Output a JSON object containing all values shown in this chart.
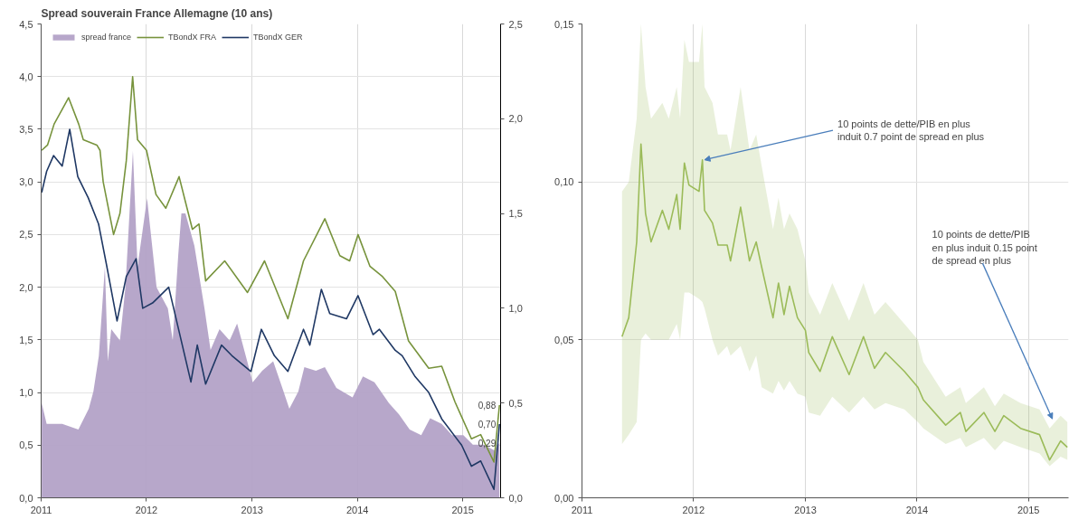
{
  "chart_data": [
    {
      "type": "line",
      "title": "Spread souverain France Allemagne (10 ans)",
      "xlim": [
        "2011-01-01",
        "2015-05-12"
      ],
      "xticks": [
        {
          "value": "2011-01-01",
          "label": "2011"
        },
        {
          "value": "2012-01-01",
          "label": "2012"
        },
        {
          "value": "2013-01-01",
          "label": "2013"
        },
        {
          "value": "2014-01-01",
          "label": "2014"
        },
        {
          "value": "2015-01-01",
          "label": "2015"
        }
      ],
      "ylim": [
        0,
        4.5
      ],
      "yticks": [
        {
          "value": 0,
          "label": "0,0"
        },
        {
          "value": 0.5,
          "label": "0,5"
        },
        {
          "value": 1,
          "label": "1,0"
        },
        {
          "value": 1.5,
          "label": "1,5"
        },
        {
          "value": 2,
          "label": "2,0"
        },
        {
          "value": 2.5,
          "label": "2,5"
        },
        {
          "value": 3,
          "label": "3,0"
        },
        {
          "value": 3.5,
          "label": "3,5"
        },
        {
          "value": 4,
          "label": "4,0"
        },
        {
          "value": 4.5,
          "label": "4,5"
        }
      ],
      "y2lim": [
        0,
        2.5
      ],
      "y2ticks": [
        {
          "value": 0,
          "label": "0,0"
        },
        {
          "value": 0.5,
          "label": "0,5"
        },
        {
          "value": 1,
          "label": "1,0"
        },
        {
          "value": 1.5,
          "label": "1,5"
        },
        {
          "value": 2,
          "label": "2,0"
        },
        {
          "value": 2.5,
          "label": "2,5"
        }
      ],
      "grid": true,
      "legend": "top left",
      "series": [
        {
          "name": "spread france",
          "type": "area",
          "axis": "y2",
          "color": "#b3a2c7",
          "x": [
            "2011-01-03",
            "2011-01-20",
            "2011-03-15",
            "2011-05-10",
            "2011-06-15",
            "2011-07-01",
            "2011-07-20",
            "2011-08-10",
            "2011-08-20",
            "2011-09-01",
            "2011-10-01",
            "2011-10-20",
            "2011-11-15",
            "2011-12-01",
            "2012-01-03",
            "2012-02-05",
            "2012-03-15",
            "2012-04-01",
            "2012-04-20",
            "2012-05-01",
            "2012-05-15",
            "2012-06-15",
            "2012-07-20",
            "2012-08-10",
            "2012-09-10",
            "2012-10-15",
            "2012-11-10",
            "2012-12-15",
            "2013-01-03",
            "2013-02-05",
            "2013-03-15",
            "2013-04-20",
            "2013-05-10",
            "2013-06-10",
            "2013-07-01",
            "2013-08-10",
            "2013-09-10",
            "2013-10-20",
            "2013-12-15",
            "2014-01-20",
            "2014-03-01",
            "2014-04-20",
            "2014-05-25",
            "2014-07-01",
            "2014-08-10",
            "2014-09-10",
            "2014-10-20",
            "2014-11-25",
            "2015-01-03",
            "2015-02-05",
            "2015-03-15",
            "2015-04-20",
            "2015-05-08"
          ],
          "values": [
            0.5,
            0.39,
            0.39,
            0.36,
            0.47,
            0.56,
            0.75,
            1.22,
            0.72,
            0.89,
            0.83,
            1.11,
            1.83,
            1.22,
            1.58,
            1.11,
            1.0,
            0.83,
            1.28,
            1.5,
            1.5,
            1.33,
            1.0,
            0.78,
            0.89,
            0.83,
            0.92,
            0.72,
            0.61,
            0.67,
            0.72,
            0.56,
            0.47,
            0.56,
            0.69,
            0.67,
            0.69,
            0.58,
            0.53,
            0.64,
            0.61,
            0.5,
            0.44,
            0.36,
            0.33,
            0.42,
            0.39,
            0.33,
            0.33,
            0.28,
            0.28,
            0.25,
            0.29
          ],
          "value_labels": [
            null,
            null,
            null,
            null,
            null,
            null,
            null,
            null,
            null,
            null,
            null,
            null,
            null,
            null,
            null,
            null,
            null,
            null,
            null,
            null,
            null,
            null,
            null,
            null,
            null,
            null,
            null,
            null,
            null,
            null,
            null,
            null,
            null,
            null,
            null,
            null,
            null,
            null,
            null,
            null,
            null,
            null,
            null,
            null,
            null,
            null,
            null,
            null,
            null,
            null,
            null,
            null,
            "0,29"
          ]
        },
        {
          "name": "TBondX FRA",
          "type": "line",
          "color": "#77933c",
          "x": [
            "2011-01-03",
            "2011-01-23",
            "2011-02-15",
            "2011-04-06",
            "2011-05-11",
            "2011-05-27",
            "2011-07-13",
            "2011-07-24",
            "2011-08-04",
            "2011-09-09",
            "2011-10-01",
            "2011-10-23",
            "2011-11-14",
            "2011-12-01",
            "2012-01-01",
            "2012-02-03",
            "2012-03-08",
            "2012-04-23",
            "2012-05-16",
            "2012-06-08",
            "2012-07-01",
            "2012-07-24",
            "2012-09-28",
            "2012-12-16",
            "2013-02-13",
            "2013-05-05",
            "2013-06-28",
            "2013-09-10",
            "2013-11-01",
            "2013-12-05",
            "2014-01-03",
            "2014-02-13",
            "2014-03-29",
            "2014-05-12",
            "2014-06-27",
            "2014-09-05",
            "2014-10-20",
            "2014-12-05",
            "2015-01-31",
            "2015-03-04",
            "2015-04-19",
            "2015-05-08"
          ],
          "values": [
            3.3,
            3.35,
            3.55,
            3.8,
            3.55,
            3.4,
            3.35,
            3.3,
            3.0,
            2.5,
            2.7,
            3.2,
            4.0,
            3.4,
            3.3,
            2.88,
            2.75,
            3.05,
            2.8,
            2.55,
            2.6,
            2.06,
            2.25,
            1.95,
            2.25,
            1.7,
            2.25,
            2.65,
            2.3,
            2.25,
            2.5,
            2.2,
            2.1,
            1.96,
            1.49,
            1.23,
            1.25,
            0.91,
            0.56,
            0.6,
            0.34,
            0.88
          ],
          "value_labels": [
            null,
            null,
            null,
            null,
            null,
            null,
            null,
            null,
            null,
            null,
            null,
            null,
            null,
            null,
            null,
            null,
            null,
            null,
            null,
            null,
            null,
            null,
            null,
            null,
            null,
            null,
            null,
            null,
            null,
            null,
            null,
            null,
            null,
            null,
            null,
            null,
            null,
            null,
            null,
            null,
            null,
            "0,88"
          ]
        },
        {
          "name": "TBondX GER",
          "type": "line",
          "color": "#1f3864",
          "x": [
            "2011-01-03",
            "2011-01-20",
            "2011-02-13",
            "2011-03-15",
            "2011-04-10",
            "2011-05-08",
            "2011-06-13",
            "2011-07-19",
            "2011-08-15",
            "2011-09-21",
            "2011-10-23",
            "2011-11-26",
            "2011-12-19",
            "2012-01-22",
            "2012-03-18",
            "2012-06-03",
            "2012-06-25",
            "2012-07-24",
            "2012-09-17",
            "2012-10-23",
            "2012-12-28",
            "2013-02-02",
            "2013-03-19",
            "2013-05-05",
            "2013-06-28",
            "2013-07-20",
            "2013-08-29",
            "2013-09-27",
            "2013-11-24",
            "2014-01-03",
            "2014-02-24",
            "2014-03-18",
            "2014-05-12",
            "2014-06-05",
            "2014-07-20",
            "2014-09-05",
            "2014-10-20",
            "2014-12-28",
            "2015-01-31",
            "2015-03-04",
            "2015-04-19",
            "2015-05-08"
          ],
          "values": [
            2.9,
            3.1,
            3.25,
            3.15,
            3.5,
            3.05,
            2.85,
            2.6,
            2.22,
            1.68,
            2.1,
            2.27,
            1.8,
            1.85,
            2.0,
            1.1,
            1.45,
            1.08,
            1.45,
            1.35,
            1.2,
            1.6,
            1.35,
            1.2,
            1.6,
            1.45,
            1.98,
            1.75,
            1.7,
            1.92,
            1.55,
            1.6,
            1.4,
            1.35,
            1.15,
            1.0,
            0.75,
            0.5,
            0.3,
            0.35,
            0.08,
            0.7
          ],
          "value_labels": [
            null,
            null,
            null,
            null,
            null,
            null,
            null,
            null,
            null,
            null,
            null,
            null,
            null,
            null,
            null,
            null,
            null,
            null,
            null,
            null,
            null,
            null,
            null,
            null,
            null,
            null,
            null,
            null,
            null,
            null,
            null,
            null,
            null,
            null,
            null,
            null,
            null,
            null,
            null,
            null,
            null,
            "0,70"
          ]
        }
      ]
    },
    {
      "type": "line",
      "xlim": [
        "2011-01-01",
        "2015-05-12"
      ],
      "xticks": [
        {
          "value": "2011-01-01",
          "label": "2011"
        },
        {
          "value": "2012-01-01",
          "label": "2012"
        },
        {
          "value": "2013-01-01",
          "label": "2013"
        },
        {
          "value": "2014-01-01",
          "label": "2014"
        },
        {
          "value": "2015-01-01",
          "label": "2015"
        }
      ],
      "ylim": [
        0,
        0.15
      ],
      "yticks": [
        {
          "value": 0,
          "label": "0,00"
        },
        {
          "value": 0.05,
          "label": "0,05"
        },
        {
          "value": 0.1,
          "label": "0,10"
        },
        {
          "value": 0.15,
          "label": "0,15"
        }
      ],
      "grid": true,
      "x": [
        "2011-05-12",
        "2011-06-03",
        "2011-06-29",
        "2011-07-13",
        "2011-07-28",
        "2011-08-15",
        "2011-09-21",
        "2011-10-12",
        "2011-11-07",
        "2011-11-18",
        "2011-12-02",
        "2011-12-17",
        "2012-01-19",
        "2012-01-30",
        "2012-02-06",
        "2012-03-03",
        "2012-03-21",
        "2012-04-20",
        "2012-05-01",
        "2012-06-03",
        "2012-07-02",
        "2012-07-24",
        "2012-08-11",
        "2012-09-17",
        "2012-10-05",
        "2012-10-23",
        "2012-11-10",
        "2012-12-06",
        "2013-01-01",
        "2013-01-12",
        "2013-02-18",
        "2013-03-30",
        "2013-05-24",
        "2013-07-10",
        "2013-08-15",
        "2013-09-20",
        "2013-11-21",
        "2014-01-04",
        "2014-01-22",
        "2014-04-05",
        "2014-05-23",
        "2014-06-10",
        "2014-08-08",
        "2014-09-13",
        "2014-10-12",
        "2014-12-06",
        "2015-02-06",
        "2015-03-11",
        "2015-04-16",
        "2015-05-08"
      ],
      "series": [
        {
          "color": "#9bbb59",
          "values": [
            0.051,
            0.057,
            0.081,
            0.112,
            0.09,
            0.081,
            0.091,
            0.085,
            0.096,
            0.085,
            0.106,
            0.099,
            0.097,
            0.107,
            0.091,
            0.087,
            0.08,
            0.08,
            0.075,
            0.092,
            0.075,
            0.081,
            0.073,
            0.057,
            0.068,
            0.058,
            0.067,
            0.057,
            0.053,
            0.046,
            0.04,
            0.051,
            0.039,
            0.051,
            0.041,
            0.046,
            0.04,
            0.035,
            0.031,
            0.023,
            0.027,
            0.021,
            0.027,
            0.021,
            0.026,
            0.022,
            0.02,
            0.012,
            0.018,
            0.016
          ],
          "upper": [
            0.097,
            0.1,
            0.12,
            0.15,
            0.13,
            0.12,
            0.125,
            0.12,
            0.13,
            0.12,
            0.145,
            0.138,
            0.138,
            0.15,
            0.13,
            0.125,
            0.115,
            0.115,
            0.11,
            0.13,
            0.11,
            0.115,
            0.105,
            0.085,
            0.095,
            0.085,
            0.09,
            0.085,
            0.075,
            0.065,
            0.058,
            0.068,
            0.056,
            0.068,
            0.058,
            0.062,
            0.055,
            0.05,
            0.043,
            0.032,
            0.035,
            0.03,
            0.035,
            0.029,
            0.033,
            0.03,
            0.028,
            0.022,
            0.026,
            0.024
          ],
          "lower": [
            0.017,
            0.02,
            0.024,
            0.05,
            0.052,
            0.05,
            0.05,
            0.05,
            0.055,
            0.05,
            0.065,
            0.065,
            0.063,
            0.062,
            0.06,
            0.05,
            0.045,
            0.048,
            0.045,
            0.048,
            0.04,
            0.045,
            0.035,
            0.033,
            0.037,
            0.034,
            0.037,
            0.033,
            0.032,
            0.027,
            0.026,
            0.032,
            0.027,
            0.032,
            0.028,
            0.03,
            0.028,
            0.024,
            0.022,
            0.017,
            0.019,
            0.016,
            0.019,
            0.015,
            0.018,
            0.016,
            0.014,
            0.01,
            0.013,
            0.012
          ]
        }
      ],
      "annotations": [
        {
          "text": "10 points de dette/PIB en plus\ninduit 0.7 point de spread en plus",
          "x": "2012-02-06",
          "y": 0.107
        },
        {
          "text": "10 points de dette/PIB\nen plus induit 0.15 point\nde spread en plus",
          "x": "2015-03-20",
          "y": 0.025
        }
      ]
    }
  ]
}
